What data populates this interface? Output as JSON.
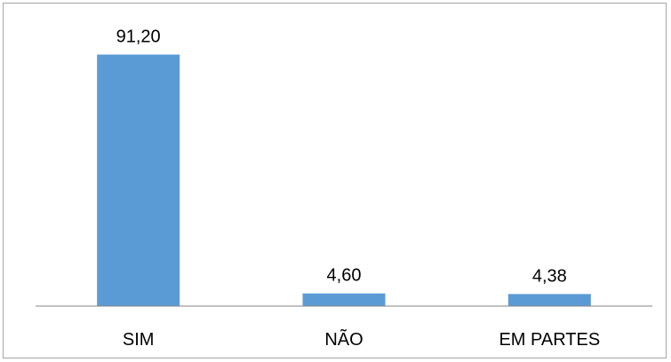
{
  "chart_data": {
    "type": "bar",
    "categories": [
      "SIM",
      "NÃO",
      "EM PARTES"
    ],
    "values": [
      91.2,
      4.6,
      4.38
    ],
    "data_labels": [
      "91,20",
      "4,60",
      "4,38"
    ],
    "title": "",
    "xlabel": "",
    "ylabel": "",
    "ylim": [
      0,
      100
    ],
    "grid": false,
    "legend": "none",
    "bar_color": "#5b9bd5",
    "axis_color": "#868686"
  }
}
